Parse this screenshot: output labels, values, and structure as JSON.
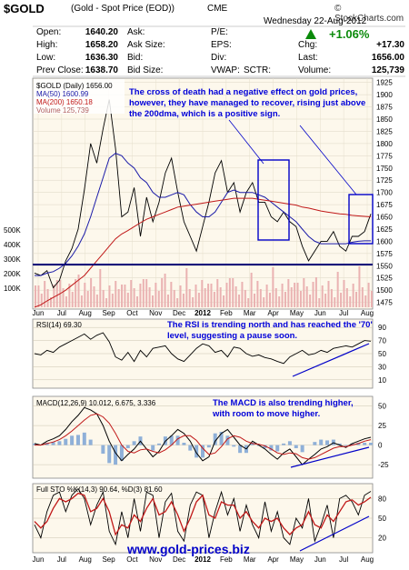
{
  "header": {
    "symbol": "$GOLD",
    "subtitle": "(Gold - Spot Price (EOD))",
    "exchange": "CME",
    "logo": "© StockCharts.com",
    "date": "Wednesday  22-Aug-2012",
    "change_pct": "+1.06%"
  },
  "quote": {
    "open_label": "Open:",
    "open": "1640.20",
    "high_label": "High:",
    "high": "1658.20",
    "low_label": "Low:",
    "low": "1636.30",
    "prevclose_label": "Prev Close:",
    "prevclose": "1638.70",
    "ask_label": "Ask:",
    "ask": "",
    "asksize_label": "Ask Size:",
    "asksize": "",
    "bid_label": "Bid:",
    "bid": "",
    "bidsize_label": "Bid Size:",
    "bidsize": "",
    "pe_label": "P/E:",
    "eps_label": "EPS:",
    "div_label": "Div:",
    "vwap_label": "VWAP:",
    "sctr_label": "SCTR:",
    "chg_label": "Chg:",
    "chg": "+17.30",
    "last_label": "Last:",
    "last": "1656.00",
    "volume_label": "Volume:",
    "volume": "125,739"
  },
  "watermark": "www.gold-prices.biz",
  "colors": {
    "ma50": "#1a1aa8",
    "ma200": "#c01818",
    "price": "#000000",
    "volume": "#e8a0a0",
    "annotation": "#0000d8",
    "support": "#00007a"
  },
  "chart_data": [
    {
      "type": "line",
      "panel": "price",
      "legend": [
        "$GOLD (Daily) 1656.00",
        "MA(50) 1600.99",
        "MA(200) 1650.18",
        "Volume 125,739"
      ],
      "x_labels": [
        "Jun",
        "Jul",
        "Aug",
        "Sep",
        "Oct",
        "Nov",
        "Dec",
        "2012",
        "Feb",
        "Mar",
        "Apr",
        "May",
        "Jun",
        "Jul",
        "Aug"
      ],
      "y_ticks": [
        1475,
        1500,
        1525,
        1550,
        1575,
        1600,
        1625,
        1650,
        1675,
        1700,
        1725,
        1750,
        1775,
        1800,
        1825,
        1850,
        1875,
        1900,
        1925
      ],
      "volume_ticks": [
        "500K",
        "400K",
        "300K",
        "200K",
        "100K"
      ],
      "ylim": [
        1465,
        1930
      ],
      "series": [
        {
          "name": "$GOLD (Daily) 1656.00",
          "values": [
            1535,
            1530,
            1540,
            1505,
            1520,
            1560,
            1585,
            1625,
            1705,
            1800,
            1760,
            1830,
            1890,
            1790,
            1650,
            1660,
            1710,
            1610,
            1690,
            1640,
            1680,
            1740,
            1770,
            1700,
            1640,
            1610,
            1580,
            1630,
            1680,
            1740,
            1765,
            1700,
            1720,
            1660,
            1700,
            1720,
            1680,
            1680,
            1650,
            1640,
            1660,
            1640,
            1630,
            1590,
            1560,
            1580,
            1600,
            1600,
            1620,
            1590,
            1580,
            1610,
            1610,
            1620,
            1656
          ]
        },
        {
          "name": "MA(50) 1600.99",
          "values": [
            1530,
            1530,
            1535,
            1538,
            1545,
            1555,
            1570,
            1590,
            1615,
            1650,
            1690,
            1730,
            1770,
            1780,
            1775,
            1760,
            1750,
            1730,
            1720,
            1700,
            1690,
            1690,
            1695,
            1700,
            1695,
            1675,
            1660,
            1650,
            1650,
            1660,
            1680,
            1700,
            1705,
            1700,
            1700,
            1700,
            1695,
            1690,
            1680,
            1670,
            1660,
            1650,
            1640,
            1625,
            1610,
            1600,
            1595,
            1595,
            1595,
            1595,
            1595,
            1598,
            1600,
            1601,
            1601
          ]
        },
        {
          "name": "MA(200) 1650.18",
          "values": [
            1465,
            1470,
            1478,
            1485,
            1492,
            1500,
            1510,
            1520,
            1530,
            1545,
            1560,
            1575,
            1590,
            1605,
            1615,
            1622,
            1630,
            1638,
            1645,
            1650,
            1655,
            1660,
            1665,
            1670,
            1672,
            1674,
            1676,
            1678,
            1680,
            1682,
            1684,
            1686,
            1688,
            1688,
            1688,
            1688,
            1686,
            1684,
            1682,
            1680,
            1678,
            1676,
            1674,
            1670,
            1668,
            1665,
            1662,
            1660,
            1658,
            1656,
            1655,
            1653,
            1652,
            1651,
            1650
          ]
        }
      ],
      "annotation": "The cross of death had a negative effect on gold prices, however, they have managed to recover, rising just above the 200dma, which is a positive sign.",
      "support_level": 1550
    },
    {
      "type": "line",
      "panel": "rsi",
      "legend": "RSI(14) 69.30",
      "y_ticks": [
        90,
        70,
        50,
        30,
        10
      ],
      "ylim": [
        0,
        100
      ],
      "values": [
        50,
        48,
        55,
        52,
        60,
        65,
        70,
        75,
        80,
        72,
        78,
        82,
        68,
        45,
        40,
        52,
        38,
        55,
        45,
        58,
        60,
        62,
        50,
        42,
        38,
        48,
        58,
        65,
        62,
        52,
        55,
        45,
        60,
        58,
        50,
        46,
        48,
        44,
        42,
        38,
        35,
        45,
        50,
        55,
        48,
        50,
        55,
        52,
        58,
        60,
        62,
        60,
        65,
        70,
        69
      ],
      "annotation": "The RSI is trending north and has reached the '70' level, suggesting a pause soon."
    },
    {
      "type": "line",
      "panel": "macd",
      "legend": "MACD(12,26,9) 10.012, 6.675, 3.336",
      "y_ticks": [
        50,
        25,
        0,
        -25
      ],
      "ylim": [
        -40,
        60
      ],
      "macd": [
        2,
        0,
        5,
        8,
        12,
        20,
        30,
        38,
        48,
        45,
        40,
        25,
        5,
        -10,
        -20,
        -12,
        -5,
        5,
        -5,
        -15,
        -8,
        5,
        12,
        20,
        15,
        5,
        -10,
        -20,
        -15,
        5,
        15,
        20,
        10,
        0,
        -5,
        5,
        0,
        -5,
        -12,
        -18,
        -10,
        -5,
        -15,
        -25,
        -18,
        -12,
        -5,
        -2,
        3,
        0,
        -3,
        2,
        5,
        8,
        10
      ],
      "signal": [
        0,
        0,
        2,
        4,
        7,
        12,
        18,
        25,
        32,
        38,
        40,
        36,
        28,
        15,
        0,
        -8,
        -10,
        -6,
        -5,
        -8,
        -10,
        -6,
        0,
        8,
        12,
        12,
        6,
        -4,
        -12,
        -10,
        -2,
        8,
        12,
        10,
        5,
        2,
        1,
        -1,
        -5,
        -10,
        -12,
        -10,
        -11,
        -16,
        -18,
        -16,
        -12,
        -8,
        -4,
        -2,
        -2,
        0,
        2,
        5,
        7
      ],
      "annotation": "The MACD is also trending higher, with room to move higher."
    },
    {
      "type": "line",
      "panel": "stochastic",
      "legend": "Full STO %K(14,3) 90.64, %D(3) 81.60",
      "y_ticks": [
        80,
        50,
        20
      ],
      "ylim": [
        0,
        100
      ],
      "k": [
        40,
        20,
        60,
        85,
        90,
        60,
        85,
        95,
        80,
        40,
        70,
        90,
        30,
        10,
        60,
        20,
        80,
        30,
        90,
        85,
        20,
        75,
        88,
        30,
        15,
        70,
        90,
        85,
        20,
        60,
        90,
        55,
        80,
        30,
        70,
        40,
        20,
        75,
        30,
        60,
        20,
        10,
        50,
        35,
        80,
        15,
        40,
        70,
        20,
        80,
        85,
        75,
        55,
        85,
        91
      ],
      "d": [
        45,
        35,
        45,
        65,
        80,
        75,
        80,
        88,
        85,
        60,
        65,
        80,
        60,
        25,
        40,
        35,
        55,
        45,
        65,
        80,
        55,
        60,
        75,
        55,
        30,
        50,
        75,
        85,
        55,
        50,
        75,
        70,
        70,
        50,
        60,
        45,
        35,
        50,
        45,
        50,
        35,
        25,
        35,
        40,
        60,
        40,
        35,
        55,
        45,
        60,
        75,
        78,
        70,
        75,
        82
      ]
    }
  ]
}
